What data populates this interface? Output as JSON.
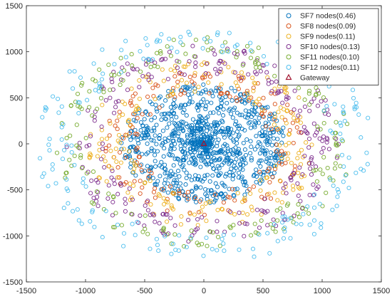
{
  "chart_data": {
    "type": "scatter",
    "title": "",
    "xlabel": "",
    "ylabel": "",
    "xlim": [
      -1500,
      1500
    ],
    "ylim": [
      -1500,
      1500
    ],
    "x_ticks": [
      -1500,
      -1000,
      -500,
      0,
      500,
      1000,
      1500
    ],
    "y_ticks": [
      -1500,
      -1000,
      -500,
      0,
      500,
      1000,
      1500
    ],
    "x_tick_labels": [
      "-1500",
      "-1000",
      "-500",
      "0",
      "500",
      "1000",
      "1500"
    ],
    "y_tick_labels": [
      "-1500",
      "-1000",
      "-500",
      "0",
      "500",
      "1000",
      "1500"
    ],
    "grid": false,
    "legend_position": "top-right",
    "series": [
      {
        "name": "SF7 nodes(0.46)",
        "color": "#0072BD",
        "marker": "circle",
        "radial_band": [
          0,
          700
        ]
      },
      {
        "name": "SF8 nodes(0.09)",
        "color": "#D95319",
        "marker": "circle",
        "radial_band": [
          560,
          860
        ]
      },
      {
        "name": "SF9 nodes(0.11)",
        "color": "#EDB120",
        "marker": "circle",
        "radial_band": [
          620,
          980
        ]
      },
      {
        "name": "SF10 nodes(0.13)",
        "color": "#7E2F8E",
        "marker": "circle",
        "radial_band": [
          820,
          1160
        ]
      },
      {
        "name": "SF11 nodes(0.10)",
        "color": "#77AC30",
        "marker": "circle",
        "radial_band": [
          980,
          1260
        ]
      },
      {
        "name": "SF12 nodes(0.11)",
        "color": "#4DBEEE",
        "marker": "circle",
        "radial_band": [
          1080,
          1420
        ]
      },
      {
        "name": "Gateway",
        "color": "#A2142F",
        "marker": "triangle",
        "points": [
          [
            0,
            0
          ]
        ]
      }
    ]
  }
}
